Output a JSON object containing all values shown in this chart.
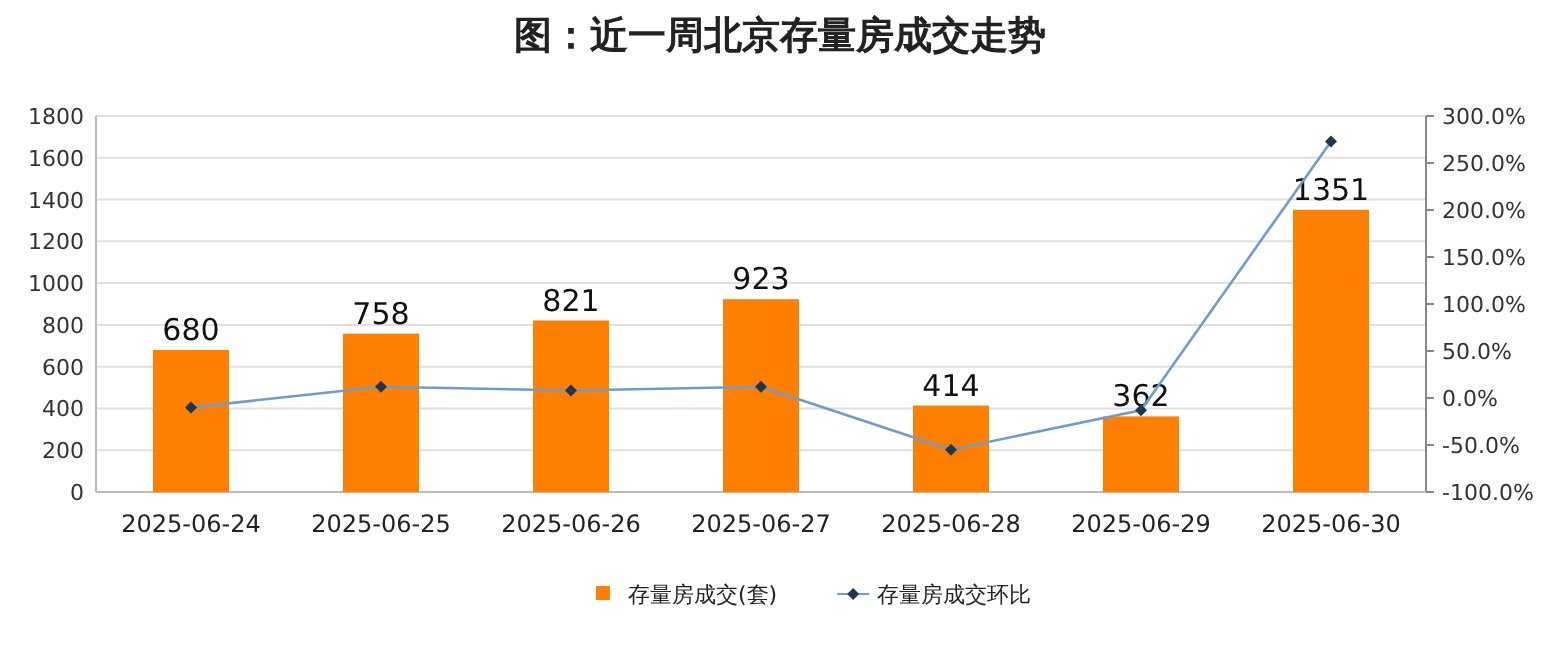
{
  "chart_data": {
    "type": "bar",
    "title": "图：近一周北京存量房成交走势",
    "categories": [
      "2025-06-24",
      "2025-06-25",
      "2025-06-26",
      "2025-06-27",
      "2025-06-28",
      "2025-06-29",
      "2025-06-30"
    ],
    "series": [
      {
        "name": "存量房成交(套)",
        "color": "#ff8000",
        "values": [
          680,
          758,
          821,
          923,
          414,
          362,
          1351
        ],
        "value_labels": [
          "680",
          "758",
          "821",
          "923",
          "414",
          "362",
          "1351"
        ]
      },
      {
        "name": "存量房成交环比",
        "type": "line",
        "axis": "y2",
        "color": "#6f9ccc",
        "marker": "diamond",
        "values": [
          -10,
          12,
          8,
          12,
          -55,
          -13,
          273
        ]
      }
    ],
    "ylim": [
      0,
      1800
    ],
    "yticks": [
      0,
      200,
      400,
      600,
      800,
      1000,
      1200,
      1400,
      1600,
      1800
    ],
    "y2lim": [
      -100,
      300
    ],
    "y2ticks": [
      {
        "value": -100,
        "label": "-100.0%"
      },
      {
        "value": -50,
        "label": "-50.0%"
      },
      {
        "value": 0,
        "label": "0.0%"
      },
      {
        "value": 50,
        "label": "50.0%"
      },
      {
        "value": 100,
        "label": "100.0%"
      },
      {
        "value": 150,
        "label": "150.0%"
      },
      {
        "value": 200,
        "label": "200.0%"
      },
      {
        "value": 250,
        "label": "250.0%"
      },
      {
        "value": 300,
        "label": "300.0%"
      }
    ],
    "grid": "y",
    "legend": "bottom"
  }
}
